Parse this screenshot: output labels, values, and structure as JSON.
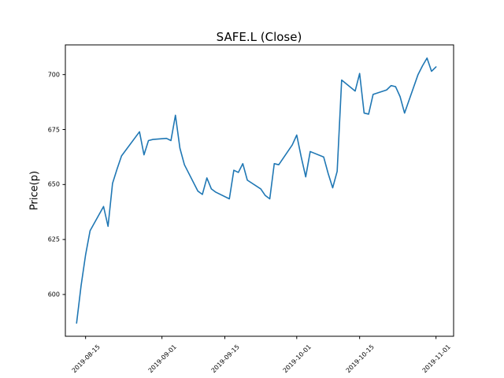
{
  "window": {
    "background": "#ffffff"
  },
  "chart_data": {
    "type": "line",
    "title": "SAFE.L (Close)",
    "ylabel": "Price(p)",
    "xlabel": "",
    "grid": false,
    "legend": null,
    "line_color": "#1f77b4",
    "axis_color": "#000000",
    "ylim": [
      581,
      713.5
    ],
    "xlim": [
      "2019-08-10T12:00:00",
      "2019-11-04T22:00:00"
    ],
    "yticks": [
      600,
      625,
      650,
      675,
      700
    ],
    "xticks": [
      "2019-08-15",
      "2019-09-01",
      "2019-09-15",
      "2019-10-01",
      "2019-10-15",
      "2019-11-01"
    ],
    "series": [
      {
        "name": "Close",
        "dates": [
          "2019-08-13",
          "2019-08-14",
          "2019-08-15",
          "2019-08-16",
          "2019-08-19",
          "2019-08-20",
          "2019-08-21",
          "2019-08-22",
          "2019-08-23",
          "2019-08-27",
          "2019-08-28",
          "2019-08-29",
          "2019-08-30",
          "2019-09-02",
          "2019-09-03",
          "2019-09-04",
          "2019-09-05",
          "2019-09-06",
          "2019-09-09",
          "2019-09-10",
          "2019-09-11",
          "2019-09-12",
          "2019-09-13",
          "2019-09-16",
          "2019-09-17",
          "2019-09-18",
          "2019-09-19",
          "2019-09-20",
          "2019-09-23",
          "2019-09-24",
          "2019-09-25",
          "2019-09-26",
          "2019-09-27",
          "2019-09-30",
          "2019-10-01",
          "2019-10-02",
          "2019-10-03",
          "2019-10-04",
          "2019-10-07",
          "2019-10-08",
          "2019-10-09",
          "2019-10-10",
          "2019-10-11",
          "2019-10-14",
          "2019-10-15",
          "2019-10-16",
          "2019-10-17",
          "2019-10-18",
          "2019-10-21",
          "2019-10-22",
          "2019-10-23",
          "2019-10-24",
          "2019-10-25",
          "2019-10-28",
          "2019-10-29",
          "2019-10-30",
          "2019-10-31",
          "2019-11-01"
        ],
        "values": [
          587,
          604,
          618,
          629,
          640,
          631,
          650.5,
          657,
          663,
          674,
          663.5,
          670,
          670.5,
          671,
          670,
          681.5,
          666.5,
          659,
          647,
          645.5,
          653,
          648,
          646.5,
          643.5,
          656.5,
          655.5,
          659.5,
          652,
          648,
          645,
          643.5,
          659.5,
          659,
          668,
          672.5,
          662.5,
          653.5,
          665,
          662.5,
          655,
          648.5,
          656,
          697.5,
          692.5,
          700.5,
          682.5,
          682,
          691,
          693,
          695,
          694.5,
          690,
          682.5,
          700,
          704,
          707.5,
          701.5,
          703.5
        ]
      }
    ]
  }
}
